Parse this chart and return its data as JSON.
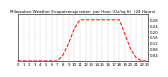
{
  "title": "Milwaukee Weather Evapotranspiration  per Hour (Oz/sq ft)  (24 Hours)",
  "title_fontsize": 3.0,
  "hours": [
    0,
    1,
    2,
    3,
    4,
    5,
    6,
    7,
    8,
    9,
    10,
    11,
    12,
    13,
    14,
    15,
    16,
    17,
    18,
    19,
    20,
    21,
    22,
    23
  ],
  "values": [
    0.0,
    0.0,
    0.0,
    0.0,
    0.0,
    0.0,
    0.0,
    0.0,
    0.04,
    0.12,
    0.22,
    0.28,
    0.28,
    0.28,
    0.28,
    0.28,
    0.28,
    0.28,
    0.28,
    0.18,
    0.08,
    0.02,
    0.0,
    0.0
  ],
  "line_color": "#ff0000",
  "line_style": "--",
  "line_width": 0.7,
  "ylim": [
    0,
    0.32
  ],
  "xlim": [
    0,
    23
  ],
  "background_color": "#ffffff",
  "grid_color": "#888888",
  "tick_fontsize": 2.8,
  "ytick_values": [
    0.04,
    0.08,
    0.12,
    0.16,
    0.2,
    0.24,
    0.28
  ],
  "xtick_values": [
    0,
    1,
    2,
    3,
    4,
    5,
    6,
    7,
    8,
    9,
    10,
    11,
    12,
    13,
    14,
    15,
    16,
    17,
    18,
    19,
    20,
    21,
    22,
    23
  ]
}
